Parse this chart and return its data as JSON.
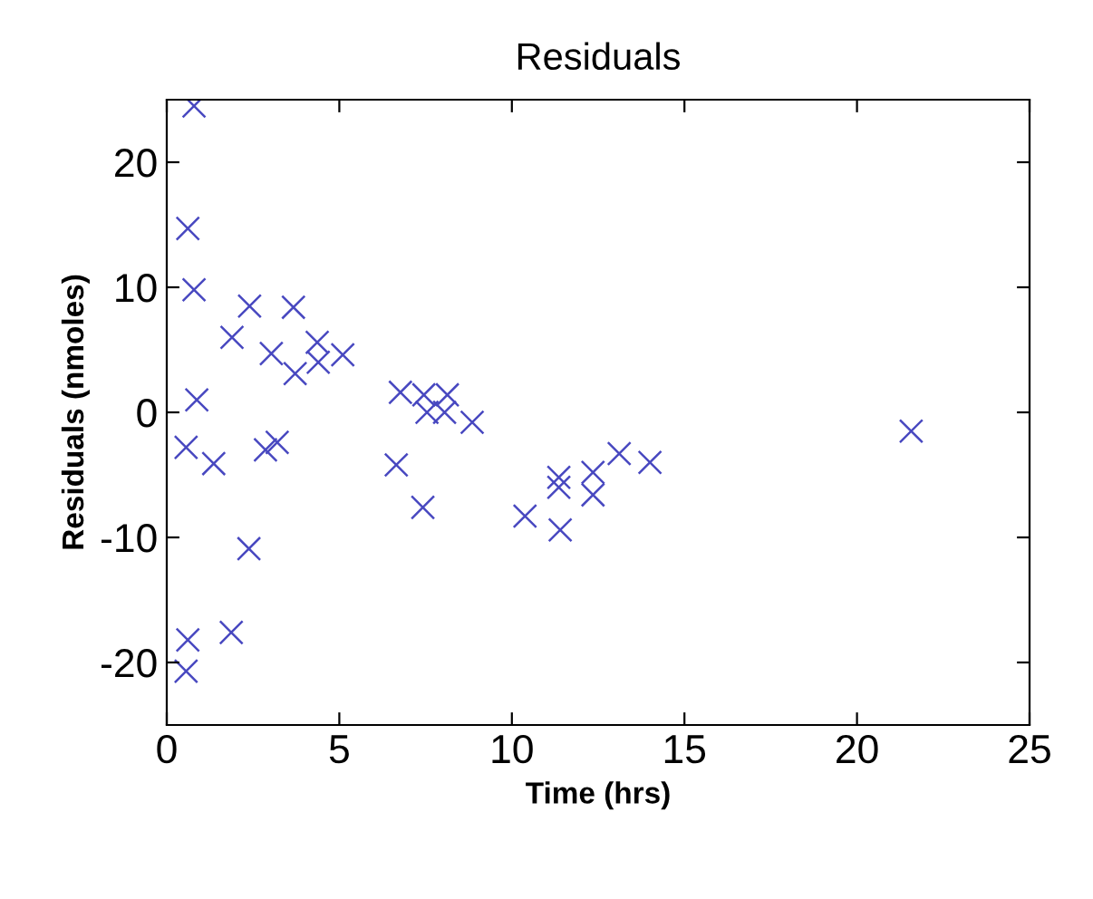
{
  "chart_data": {
    "type": "scatter",
    "title": "Residuals",
    "xlabel": "Time (hrs)",
    "ylabel": "Residuals (nmoles)",
    "x": [
      0.79,
      0.61,
      0.79,
      0.87,
      1.89,
      2.4,
      3.03,
      3.67,
      3.72,
      4.36,
      4.39,
      5.1,
      6.77,
      7.45,
      7.54,
      8.13,
      8.05,
      8.85,
      0.56,
      1.36,
      2.86,
      3.2,
      6.65,
      7.42,
      2.38,
      0.61,
      0.56,
      1.87,
      10.38,
      11.4,
      11.36,
      11.36,
      12.35,
      12.35,
      13.11,
      14.0,
      21.57
    ],
    "values": [
      24.5,
      14.7,
      9.8,
      1.0,
      6.0,
      8.5,
      4.7,
      8.4,
      3.1,
      5.6,
      4.0,
      4.6,
      1.6,
      1.4,
      0.0,
      1.4,
      0.0,
      -0.8,
      -2.8,
      -4.1,
      -3.0,
      -2.4,
      -4.2,
      -7.6,
      -10.9,
      -18.2,
      -20.7,
      -17.6,
      -8.3,
      -9.4,
      -5.2,
      -6.0,
      -4.8,
      -6.6,
      -3.3,
      -4.0,
      -1.5
    ],
    "color": "#4848c0",
    "marker": "cross",
    "xlim": [
      0,
      25
    ],
    "ylim": [
      -25,
      25
    ],
    "xticks": [
      0,
      5,
      10,
      15,
      20,
      25
    ],
    "yticks": [
      -20,
      -10,
      0,
      10,
      20
    ],
    "grid": false,
    "legend": false
  }
}
